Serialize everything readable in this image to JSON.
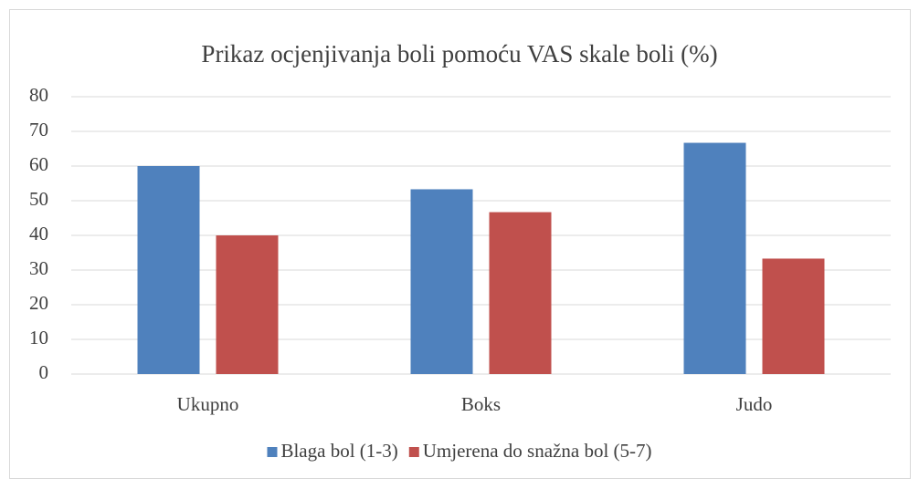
{
  "chart_data": {
    "type": "bar",
    "title": "Prikaz ocjenjivanja boli pomoću VAS skale boli (%)",
    "categories": [
      "Ukupno",
      "Boks",
      "Judo"
    ],
    "series": [
      {
        "name": "Blaga bol (1-3)",
        "color": "#4f81bd",
        "values": [
          60,
          53.3,
          66.7
        ]
      },
      {
        "name": "Umjerena do snažna bol (5-7)",
        "color": "#c0504d",
        "values": [
          40,
          46.7,
          33.3
        ]
      }
    ],
    "ylim": [
      0,
      80
    ],
    "yticks": [
      0,
      10,
      20,
      30,
      40,
      50,
      60,
      70,
      80
    ],
    "grid": true,
    "legend": "bottom"
  }
}
